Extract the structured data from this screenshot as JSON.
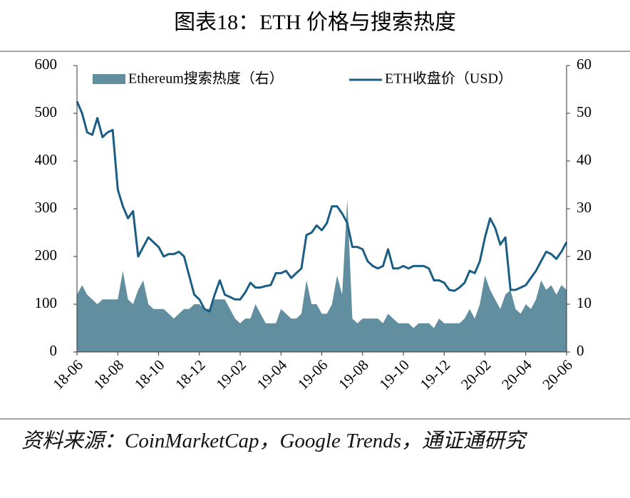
{
  "chart_data": {
    "type": "line",
    "title": "图表18：ETH 价格与搜索热度",
    "source": "资料来源：CoinMarketCap，Google Trends，通证通研究",
    "categories": [
      "18-06",
      null,
      null,
      null,
      null,
      null,
      null,
      null,
      "18-08",
      null,
      null,
      null,
      null,
      null,
      null,
      null,
      "18-10",
      null,
      null,
      null,
      null,
      null,
      null,
      null,
      "18-12",
      null,
      null,
      null,
      null,
      null,
      null,
      null,
      "19-02",
      null,
      null,
      null,
      null,
      null,
      null,
      null,
      "19-04",
      null,
      null,
      null,
      null,
      null,
      null,
      null,
      "19-06",
      null,
      null,
      null,
      null,
      null,
      null,
      null,
      "19-08",
      null,
      null,
      null,
      null,
      null,
      null,
      null,
      "19-10",
      null,
      null,
      null,
      null,
      null,
      null,
      null,
      "19-12",
      null,
      null,
      null,
      null,
      null,
      null,
      null,
      "20-02",
      null,
      null,
      null,
      null,
      null,
      null,
      null,
      "20-04",
      null,
      null,
      null,
      null,
      null,
      null,
      null,
      "20-06"
    ],
    "series": [
      {
        "name": "Ethereum搜索热度（右）",
        "type": "area",
        "axis": "y2",
        "color": "#618f9f",
        "values": [
          12,
          14,
          12,
          11,
          10,
          11,
          11,
          11,
          11,
          17,
          11,
          10,
          13,
          15,
          10,
          9,
          9,
          9,
          8,
          7,
          8,
          9,
          9,
          10,
          10,
          9,
          9,
          11,
          11,
          11,
          9,
          7,
          6,
          7,
          7,
          10,
          8,
          6,
          6,
          6,
          9,
          8,
          7,
          7,
          8,
          15,
          10,
          10,
          8,
          8,
          10,
          16,
          12,
          32,
          7,
          6,
          7,
          7,
          7,
          7,
          6,
          8,
          7,
          6,
          6,
          6,
          5,
          6,
          6,
          6,
          5,
          7,
          6,
          6,
          6,
          6,
          7,
          9,
          7,
          10,
          16,
          13,
          11,
          9,
          12,
          13,
          9,
          8,
          10,
          9,
          11,
          15,
          13,
          14,
          12,
          14,
          13
        ]
      },
      {
        "name": "ETH收盘价（USD）",
        "type": "line",
        "color": "#1a5e86",
        "values": [
          525,
          500,
          460,
          455,
          490,
          450,
          460,
          465,
          340,
          305,
          280,
          295,
          200,
          220,
          240,
          230,
          220,
          200,
          205,
          205,
          210,
          200,
          160,
          120,
          110,
          90,
          85,
          120,
          150,
          120,
          115,
          110,
          110,
          125,
          145,
          135,
          135,
          138,
          140,
          165,
          165,
          170,
          155,
          165,
          175,
          245,
          250,
          265,
          255,
          270,
          305,
          305,
          290,
          270,
          220,
          220,
          215,
          190,
          180,
          175,
          180,
          215,
          175,
          175,
          180,
          175,
          180,
          180,
          180,
          175,
          150,
          150,
          145,
          130,
          128,
          135,
          145,
          170,
          165,
          190,
          240,
          280,
          260,
          225,
          240,
          130,
          130,
          135,
          140,
          155,
          170,
          190,
          210,
          205,
          195,
          210,
          230
        ]
      }
    ],
    "ylim": [
      0,
      600
    ],
    "yticks": [
      0,
      100,
      200,
      300,
      400,
      500,
      600
    ],
    "y2lim": [
      0,
      60
    ],
    "y2ticks": [
      0,
      10,
      20,
      30,
      40,
      50,
      60
    ],
    "legend": "top"
  }
}
